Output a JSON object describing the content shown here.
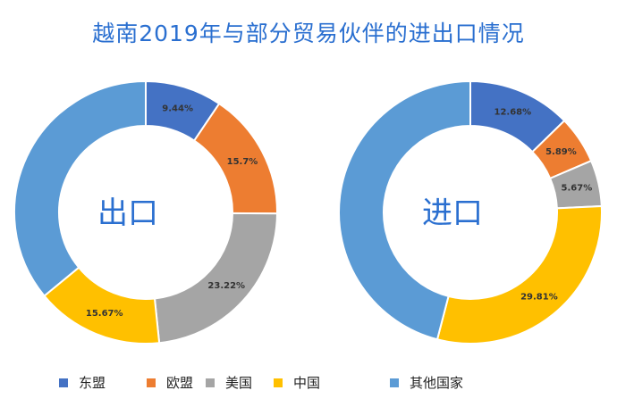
{
  "title": "越南2019年与部分贸易伙伴的进出口情况",
  "colors": {
    "asean": "#4472c4",
    "eu": "#ed7d31",
    "us": "#a5a5a5",
    "china": "#ffc000",
    "other": "#5b9bd5"
  },
  "chart_data": [
    {
      "type": "pie",
      "donut": true,
      "center_label": "出口",
      "slices": [
        {
          "category": "东盟",
          "value": 9.44,
          "label": "9.44%"
        },
        {
          "category": "欧盟",
          "value": 15.7,
          "label": "15.7%"
        },
        {
          "category": "美国",
          "value": 23.22,
          "label": "23.22%"
        },
        {
          "category": "中国",
          "value": 15.67,
          "label": "15.67%"
        },
        {
          "category": "其他国家",
          "value": 35.97,
          "label": ""
        }
      ]
    },
    {
      "type": "pie",
      "donut": true,
      "center_label": "进口",
      "slices": [
        {
          "category": "东盟",
          "value": 12.68,
          "label": "12.68%"
        },
        {
          "category": "欧盟",
          "value": 5.89,
          "label": "5.89%"
        },
        {
          "category": "美国",
          "value": 5.67,
          "label": "5.67%"
        },
        {
          "category": "中国",
          "value": 29.81,
          "label": "29.81%"
        },
        {
          "category": "其他国家",
          "value": 45.95,
          "label": ""
        }
      ]
    }
  ],
  "legend": [
    {
      "label": "东盟",
      "color_key": "asean"
    },
    {
      "label": "欧盟",
      "color_key": "eu"
    },
    {
      "label": "美国",
      "color_key": "us"
    },
    {
      "label": "中国",
      "color_key": "china"
    },
    {
      "label": "其他国家",
      "color_key": "other"
    }
  ]
}
